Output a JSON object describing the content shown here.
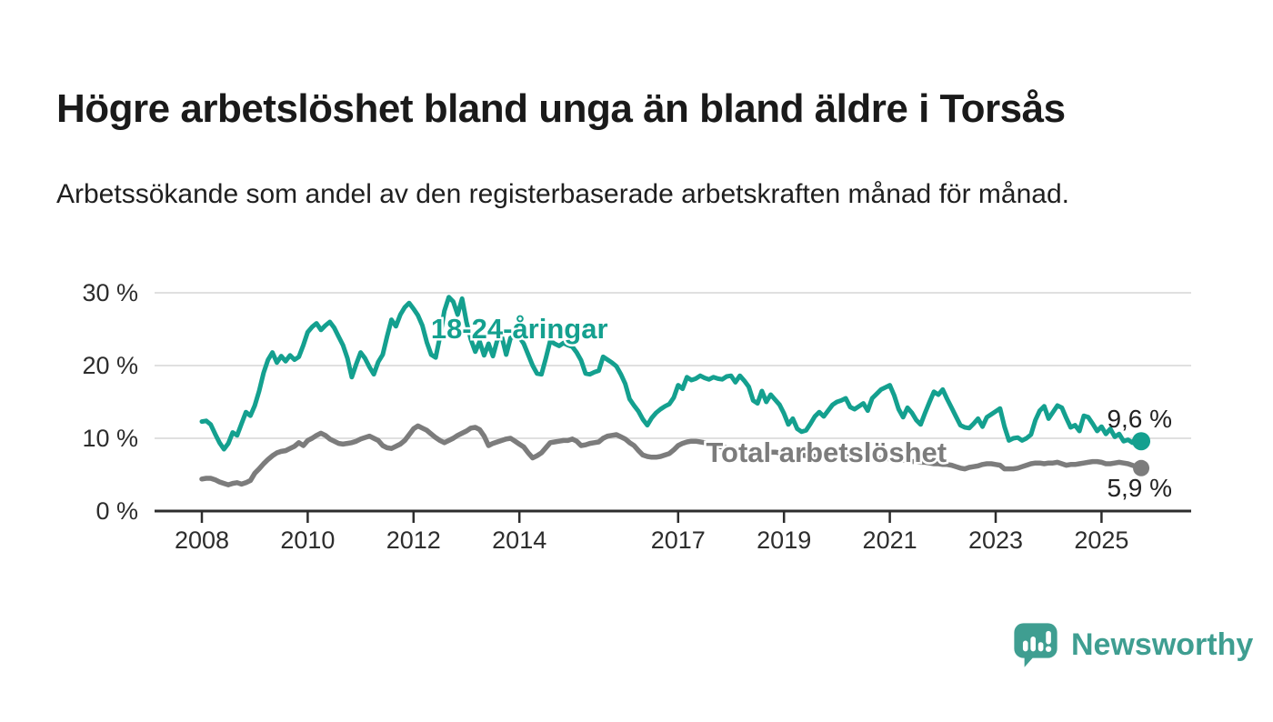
{
  "page": {
    "title": "Högre arbetslöshet bland unga än bland äldre i Torsås",
    "subtitle": "Arbetssökande som andel av den registerbaserade arbetskraften månad för månad."
  },
  "branding": {
    "logo_text": "Newsworthy",
    "logo_icon": "bar-chart-speech-bubble-icon",
    "brand_color": "#3f9e91"
  },
  "chart_data": {
    "type": "line",
    "title": "Högre arbetslöshet bland unga än bland äldre i Torsås",
    "unit": "%",
    "grid": "horizontal",
    "legend_position": "inline-labels",
    "x_axis": {
      "tick_years": [
        2008,
        2010,
        2012,
        2014,
        2017,
        2019,
        2021,
        2023,
        2025
      ],
      "tick_labels": [
        "2008",
        "2010",
        "2012",
        "2014",
        "2017",
        "2019",
        "2021",
        "2023",
        "2025"
      ]
    },
    "y_axis": {
      "tick_values": [
        0,
        10,
        20,
        30
      ],
      "tick_labels": [
        "0 %",
        "10 %",
        "20 %",
        "30 %"
      ],
      "range": [
        0,
        32
      ]
    },
    "start_year": 2008,
    "points_per_year": 12,
    "colors": {
      "youth": "#14a08f",
      "total": "#7c7c7c",
      "gridline": "#e0e0e0",
      "axis": "#2d2d2d",
      "value_label": "#222222"
    },
    "series": [
      {
        "name": "18-24-åringar",
        "color": "#14a08f",
        "end_value": 9.6,
        "end_label": "9,6 %",
        "end_label_side": "above",
        "label_at": {
          "year": 2014.0,
          "pct": 25.1
        },
        "values": [
          12.3,
          12.4,
          11.9,
          10.6,
          9.4,
          8.5,
          9.3,
          10.8,
          10.4,
          12.0,
          13.6,
          13.1,
          14.5,
          16.5,
          19.0,
          20.8,
          21.8,
          20.4,
          21.3,
          20.6,
          21.4,
          20.8,
          21.2,
          22.8,
          24.6,
          25.3,
          25.8,
          24.9,
          25.5,
          26.0,
          25.2,
          24.0,
          22.8,
          21.0,
          18.4,
          20.2,
          21.8,
          21.0,
          19.8,
          18.8,
          20.5,
          21.5,
          24.0,
          26.3,
          25.4,
          27.0,
          28.0,
          28.6,
          27.8,
          26.9,
          25.5,
          23.2,
          21.5,
          21.1,
          24.0,
          27.5,
          29.4,
          28.8,
          27.0,
          29.2,
          26.0,
          23.6,
          21.9,
          23.3,
          21.4,
          23.0,
          21.3,
          23.5,
          24.0,
          21.5,
          23.8,
          24.0,
          23.9,
          23.0,
          21.5,
          20.0,
          18.9,
          18.8,
          21.0,
          23.4,
          23.0,
          22.7,
          23.1,
          22.8,
          22.6,
          21.8,
          20.7,
          18.9,
          18.8,
          19.1,
          19.3,
          21.2,
          20.8,
          20.4,
          19.9,
          18.8,
          17.5,
          15.4,
          14.5,
          13.7,
          12.6,
          11.8,
          12.8,
          13.5,
          14.0,
          14.4,
          14.7,
          15.6,
          17.3,
          16.8,
          18.4,
          18.0,
          18.2,
          18.6,
          18.3,
          18.1,
          18.4,
          18.2,
          18.1,
          18.5,
          18.6,
          17.7,
          18.6,
          17.9,
          17.1,
          15.2,
          14.8,
          16.5,
          15.0,
          16.0,
          15.3,
          14.6,
          13.4,
          11.9,
          12.7,
          11.3,
          10.9,
          11.1,
          12.0,
          13.0,
          13.6,
          13.0,
          13.8,
          14.6,
          15.0,
          15.2,
          15.5,
          14.3,
          14.0,
          14.4,
          14.8,
          13.8,
          15.5,
          16.1,
          16.7,
          17.0,
          17.3,
          15.9,
          14.0,
          12.9,
          14.2,
          13.5,
          12.5,
          11.9,
          13.5,
          15.0,
          16.4,
          16.0,
          16.7,
          15.4,
          14.2,
          13.0,
          11.8,
          11.5,
          11.4,
          12.0,
          12.7,
          11.6,
          12.9,
          13.3,
          13.7,
          14.1,
          11.6,
          9.7,
          10.0,
          10.1,
          9.7,
          10.0,
          10.5,
          12.5,
          13.8,
          14.4,
          12.7,
          13.6,
          14.5,
          14.2,
          12.8,
          11.5,
          11.8,
          11.0,
          13.1,
          12.9,
          12.0,
          11.0,
          11.6,
          10.6,
          11.3,
          10.2,
          10.6,
          9.6,
          9.8,
          9.4,
          10.2,
          9.6
        ]
      },
      {
        "name": "Total arbetslöshet",
        "color": "#7c7c7c",
        "end_value": 5.9,
        "end_label": "5,9 %",
        "end_label_side": "below",
        "label_at": {
          "year": 2019.8,
          "pct": 8.1
        },
        "values": [
          4.4,
          4.5,
          4.5,
          4.3,
          4.0,
          3.8,
          3.6,
          3.8,
          3.9,
          3.7,
          3.9,
          4.2,
          5.2,
          5.8,
          6.5,
          7.1,
          7.6,
          8.0,
          8.2,
          8.3,
          8.6,
          8.9,
          9.4,
          9.0,
          9.7,
          10.0,
          10.4,
          10.7,
          10.4,
          9.9,
          9.6,
          9.3,
          9.2,
          9.3,
          9.4,
          9.6,
          9.9,
          10.1,
          10.3,
          10.0,
          9.7,
          9.0,
          8.7,
          8.6,
          8.9,
          9.2,
          9.7,
          10.5,
          11.3,
          11.7,
          11.4,
          11.1,
          10.6,
          10.1,
          9.7,
          9.4,
          9.7,
          10.0,
          10.4,
          10.7,
          11.0,
          11.4,
          11.5,
          11.2,
          10.3,
          9.0,
          9.3,
          9.5,
          9.7,
          9.9,
          10.0,
          9.6,
          9.2,
          8.8,
          8.0,
          7.3,
          7.6,
          8.0,
          8.7,
          9.4,
          9.5,
          9.6,
          9.7,
          9.7,
          9.9,
          9.6,
          9.0,
          9.1,
          9.3,
          9.4,
          9.5,
          10.0,
          10.3,
          10.4,
          10.5,
          10.2,
          9.9,
          9.4,
          9.0,
          8.3,
          7.7,
          7.5,
          7.4,
          7.4,
          7.5,
          7.7,
          7.9,
          8.4,
          9.0,
          9.3,
          9.5,
          9.6,
          9.6,
          9.5,
          9.4,
          9.2,
          9.0,
          8.9,
          8.8,
          8.7,
          8.6,
          8.5,
          8.5,
          8.4,
          8.4,
          8.3,
          8.3,
          8.2,
          8.2,
          8.1,
          8.1,
          8.0,
          7.9,
          7.9,
          7.8,
          7.8,
          7.7,
          7.6,
          7.6,
          7.5,
          7.4,
          7.4,
          7.3,
          7.3,
          7.3,
          7.3,
          7.4,
          7.5,
          7.5,
          7.5,
          7.4,
          7.4,
          7.3,
          7.3,
          7.2,
          7.2,
          7.2,
          7.1,
          7.0,
          7.0,
          6.9,
          6.8,
          6.8,
          6.7,
          6.7,
          6.6,
          6.5,
          6.5,
          6.4,
          6.4,
          6.3,
          6.1,
          5.9,
          5.8,
          6.0,
          6.1,
          6.2,
          6.4,
          6.5,
          6.5,
          6.4,
          6.3,
          5.8,
          5.8,
          5.8,
          5.9,
          6.1,
          6.3,
          6.5,
          6.6,
          6.6,
          6.5,
          6.6,
          6.6,
          6.7,
          6.5,
          6.3,
          6.4,
          6.4,
          6.5,
          6.6,
          6.7,
          6.8,
          6.8,
          6.7,
          6.5,
          6.5,
          6.6,
          6.7,
          6.6,
          6.5,
          6.3,
          6.1,
          5.9
        ]
      }
    ]
  }
}
